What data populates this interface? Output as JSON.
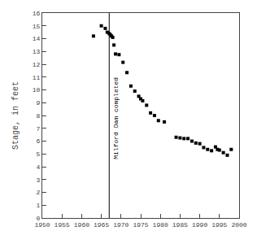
{
  "chart_data": {
    "type": "scatter",
    "x": [
      1963,
      1965,
      1966,
      1966.5,
      1967,
      1967.3,
      1967.6,
      1967.9,
      1968.2,
      1968.6,
      1969.5,
      1970.5,
      1971.5,
      1972.5,
      1973.5,
      1974.5,
      1975,
      1975.5,
      1976.5,
      1977.5,
      1978.5,
      1979.5,
      1981,
      1984,
      1985,
      1986,
      1987,
      1988,
      1989,
      1990,
      1991,
      1992,
      1993,
      1994,
      1994.5,
      1995,
      1996,
      1997,
      1998
    ],
    "values": [
      14.2,
      15.0,
      14.8,
      14.5,
      14.4,
      14.3,
      14.2,
      14.1,
      13.5,
      12.8,
      12.75,
      12.15,
      11.35,
      10.3,
      9.9,
      9.5,
      9.3,
      9.15,
      8.8,
      8.2,
      8.0,
      7.6,
      7.5,
      6.3,
      6.25,
      6.2,
      6.2,
      6.0,
      5.85,
      5.8,
      5.5,
      5.35,
      5.25,
      5.55,
      5.35,
      5.3,
      5.1,
      4.9,
      5.35
    ],
    "color": "black",
    "marker": "square",
    "ylabel": "Stage, in feet",
    "xlim": [
      1950,
      2000
    ],
    "ylim": [
      0,
      16
    ],
    "xticks": [
      1950,
      1955,
      1960,
      1965,
      1970,
      1975,
      1980,
      1985,
      1990,
      1995,
      2000
    ],
    "yticks": [
      0,
      1,
      2,
      3,
      4,
      5,
      6,
      7,
      8,
      9,
      10,
      11,
      12,
      13,
      14,
      15,
      16
    ],
    "grid": false,
    "vline": {
      "x": 1967,
      "label": "Milford Dam completed",
      "color": "black"
    }
  }
}
